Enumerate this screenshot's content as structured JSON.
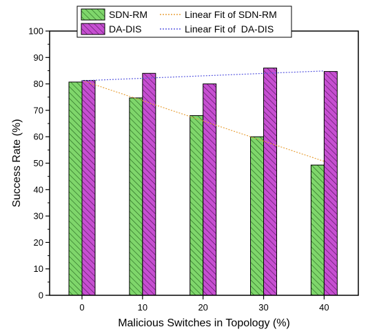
{
  "chart_data": {
    "type": "bar",
    "title": "",
    "xlabel": "Malicious Switches in Topology (%)",
    "ylabel": "Success Rate (%)",
    "categories": [
      "0",
      "10",
      "20",
      "30",
      "40"
    ],
    "ylim": [
      0,
      100
    ],
    "yticks": [
      "0",
      "10",
      "20",
      "30",
      "40",
      "50",
      "60",
      "70",
      "80",
      "90",
      "100"
    ],
    "grid": false,
    "legend_position": "top",
    "series": [
      {
        "name": "SDN-RM",
        "values": [
          80.7,
          74.7,
          68.0,
          60.0,
          49.3
        ],
        "color": "#7fd66b",
        "pattern": "diagonal-hatch"
      },
      {
        "name": "DA-DIS",
        "values": [
          81.3,
          84.0,
          80.0,
          86.0,
          84.7
        ],
        "color": "#c64fd1",
        "pattern": "diagonal-hatch"
      }
    ],
    "fits": [
      {
        "name": "Linear Fit of SDN-RM",
        "start": 81.3,
        "end": 50.7,
        "color": "#e8a13a",
        "style": "dotted"
      },
      {
        "name": "Linear Fit of  DA-DIS",
        "start": 81.2,
        "end": 84.9,
        "color": "#5a5ae0",
        "style": "dotted"
      }
    ]
  }
}
